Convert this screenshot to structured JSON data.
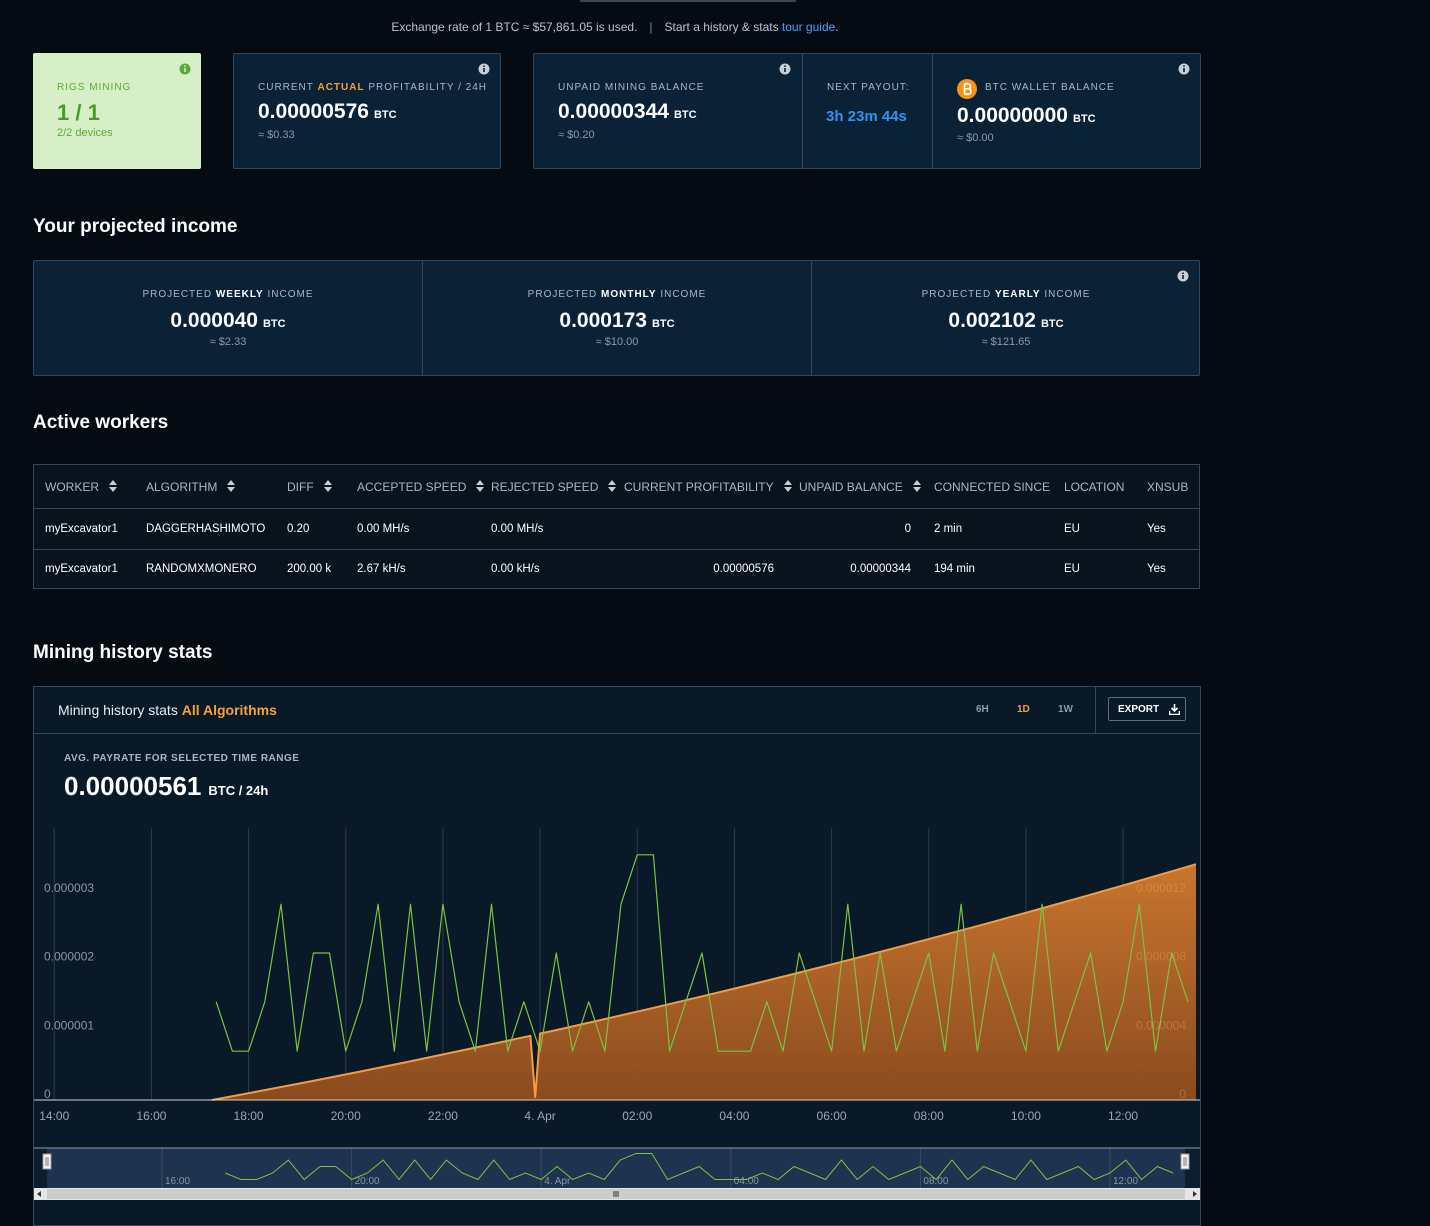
{
  "header": {
    "exchange_note": "Exchange rate of 1 BTC ≈ $57,861.05 is used.",
    "guide_prefix": "Start a history & stats ",
    "guide_link": "tour guide",
    "guide_suffix": "."
  },
  "cards": {
    "rigs": {
      "label": "RIGS MINING",
      "value": "1 / 1",
      "sub": "2/2 devices"
    },
    "profitability": {
      "label_pre": "CURRENT ",
      "label_em": "ACTUAL",
      "label_post": " PROFITABILITY / 24H",
      "value": "0.00000576",
      "unit": "BTC",
      "usd": "≈ $0.33"
    },
    "unpaid": {
      "label": "UNPAID MINING BALANCE",
      "value": "0.00000344",
      "unit": "BTC",
      "usd": "≈ $0.20"
    },
    "payout": {
      "label": "NEXT PAYOUT:",
      "value": "3h 23m 44s"
    },
    "wallet": {
      "label": "BTC WALLET BALANCE",
      "value": "0.00000000",
      "unit": "BTC",
      "usd": "≈ $0.00"
    }
  },
  "projected": {
    "title": "Your projected income",
    "items": [
      {
        "pre": "PROJECTED ",
        "em": "WEEKLY",
        "post": " INCOME",
        "value": "0.000040",
        "unit": "BTC",
        "usd": "≈ $2.33"
      },
      {
        "pre": "PROJECTED ",
        "em": "MONTHLY",
        "post": " INCOME",
        "value": "0.000173",
        "unit": "BTC",
        "usd": "≈ $10.00"
      },
      {
        "pre": "PROJECTED ",
        "em": "YEARLY",
        "post": " INCOME",
        "value": "0.002102",
        "unit": "BTC",
        "usd": "≈ $121.65"
      }
    ]
  },
  "workers": {
    "title": "Active workers",
    "columns": [
      "WORKER",
      "ALGORITHM",
      "DIFF",
      "ACCEPTED SPEED",
      "REJECTED SPEED",
      "CURRENT PROFITABILITY",
      "UNPAID BALANCE",
      "CONNECTED SINCE",
      "LOCATION",
      "XNSUB"
    ],
    "rows": [
      [
        "myExcavator1",
        "DAGGERHASHIMOTO",
        "0.20",
        "0.00 MH/s",
        "0.00 MH/s",
        null,
        "0",
        "2 min",
        "EU",
        "Yes"
      ],
      [
        "myExcavator1",
        "RANDOMXMONERO",
        "200.00 k",
        "2.67 kH/s",
        "0.00 kH/s",
        "0.00000576",
        "0.00000344",
        "194 min",
        "EU",
        "Yes"
      ]
    ]
  },
  "history": {
    "title": "Mining history stats",
    "panel_title": "Mining history stats ",
    "algorithm": "All Algorithms",
    "ranges": [
      "6H",
      "1D",
      "1W"
    ],
    "selected_range": 1,
    "export": "EXPORT",
    "avg_label": "AVG. PAYRATE FOR SELECTED TIME RANGE",
    "avg_value": "0.00000561",
    "avg_unit": "BTC / 24h"
  },
  "chart_data": {
    "type": "line",
    "grid": "x",
    "xlim": [
      815,
      2255
    ],
    "xticks": [
      {
        "value": 840,
        "label": "14:00"
      },
      {
        "value": 960,
        "label": "16:00"
      },
      {
        "value": 1080,
        "label": "18:00"
      },
      {
        "value": 1200,
        "label": "20:00"
      },
      {
        "value": 1320,
        "label": "22:00"
      },
      {
        "value": 1440,
        "label": "4. Apr"
      },
      {
        "value": 1560,
        "label": "02:00"
      },
      {
        "value": 1680,
        "label": "04:00"
      },
      {
        "value": 1800,
        "label": "06:00"
      },
      {
        "value": 1920,
        "label": "08:00"
      },
      {
        "value": 2040,
        "label": "10:00"
      },
      {
        "value": 2160,
        "label": "12:00"
      }
    ],
    "ylim": [
      0,
      3.96e-06
    ],
    "yticks": [
      0,
      1e-06,
      2e-06,
      3e-06
    ],
    "y2lim": [
      0,
      1.584e-05
    ],
    "y2ticks": [
      0,
      4e-06,
      8e-06,
      1.2e-05
    ],
    "series": [
      {
        "color": "#f59b42",
        "axis": "y2",
        "fill": true,
        "x": [
          1035,
          1095,
          1155,
          1215,
          1275,
          1335,
          1395,
          1428,
          1434,
          1440,
          1455,
          1515,
          1575,
          1635,
          1695,
          1755,
          1815,
          1875,
          1935,
          1995,
          2055,
          2115,
          2175,
          2235,
          2250
        ],
        "values": [
          0,
          5.3e-07,
          1.07e-06,
          1.63e-06,
          2.21e-06,
          2.8e-06,
          3.4e-06,
          3.74e-06,
          1.7e-07,
          3.87e-06,
          4.02e-06,
          4.66e-06,
          5.31e-06,
          5.98e-06,
          6.66e-06,
          7.36e-06,
          8.08e-06,
          8.81e-06,
          9.56e-06,
          1.032e-05,
          1.11e-05,
          1.189e-05,
          1.27e-05,
          1.352e-05,
          1.373e-05
        ]
      },
      {
        "color": "#7cc243",
        "x": [
          1040,
          1060,
          1080,
          1100,
          1120,
          1140,
          1160,
          1180,
          1200,
          1220,
          1240,
          1260,
          1280,
          1300,
          1320,
          1340,
          1360,
          1380,
          1400,
          1420,
          1440,
          1460,
          1480,
          1500,
          1520,
          1540,
          1560,
          1580,
          1600,
          1620,
          1640,
          1660,
          1680,
          1700,
          1720,
          1740,
          1760,
          1780,
          1800,
          1820,
          1840,
          1860,
          1880,
          1900,
          1920,
          1940,
          1960,
          1980,
          2000,
          2020,
          2040,
          2060,
          2080,
          2100,
          2120,
          2140,
          2160,
          2180,
          2200,
          2220,
          2240
        ],
        "values": [
          1.43e-06,
          7.1e-07,
          7.1e-07,
          1.43e-06,
          2.85e-06,
          7.1e-07,
          2.14e-06,
          2.14e-06,
          7.1e-07,
          1.43e-06,
          2.85e-06,
          7.1e-07,
          2.85e-06,
          7.1e-07,
          2.85e-06,
          1.43e-06,
          7.1e-07,
          2.85e-06,
          7.1e-07,
          1.43e-06,
          7.1e-07,
          2.14e-06,
          7.1e-07,
          1.43e-06,
          7.1e-07,
          2.85e-06,
          3.57e-06,
          3.57e-06,
          7.1e-07,
          1.43e-06,
          2.14e-06,
          7.1e-07,
          7.1e-07,
          7.1e-07,
          1.43e-06,
          7.1e-07,
          2.14e-06,
          1.43e-06,
          7.1e-07,
          2.85e-06,
          7.1e-07,
          2.14e-06,
          7.1e-07,
          1.43e-06,
          2.14e-06,
          7.1e-07,
          2.85e-06,
          7.1e-07,
          2.14e-06,
          1.43e-06,
          7.1e-07,
          2.85e-06,
          7.1e-07,
          1.43e-06,
          2.14e-06,
          7.1e-07,
          1.43e-06,
          2.85e-06,
          7.1e-07,
          2.14e-06,
          1.43e-06
        ]
      }
    ]
  }
}
